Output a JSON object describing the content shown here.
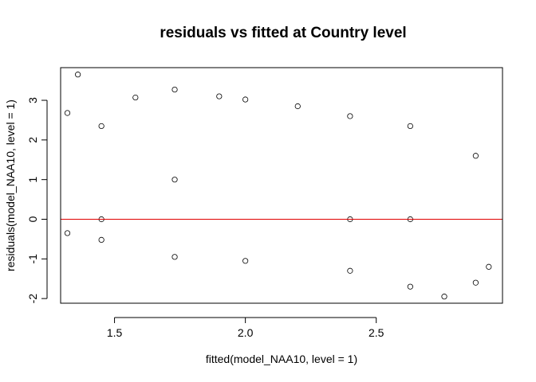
{
  "chart_data": {
    "type": "scatter",
    "title": "residuals vs fitted at Country level",
    "xlabel": "fitted(model_NAA10, level = 1)",
    "ylabel": "residuals(model_NAA10, level = 1)",
    "xlim": [
      1.2941,
      2.9824
    ],
    "ylim": [
      -2.1176,
      3.8235
    ],
    "x_ticks": [
      1.5,
      2.0,
      2.5
    ],
    "x_tick_labels": [
      "1.5",
      "2.0",
      "2.5"
    ],
    "y_ticks": [
      -2,
      -1,
      0,
      1,
      2,
      3
    ],
    "y_tick_labels": [
      "-2",
      "-1",
      "0",
      "1",
      "2",
      "3"
    ],
    "reference_line": {
      "y": 0,
      "color": "#e00000"
    },
    "point_style": "open-circle",
    "description_of_density": "very dense overplotted cloud; fitted values cluster at discrete levels around 1.32, 1.45, 1.73, 2.0, 2.4, 2.63 and 2.88, with residuals lying on descending diagonal bands",
    "series": [
      {
        "name": "residuals",
        "x": [
          1.36,
          1.32,
          1.32,
          1.45,
          1.45,
          1.45,
          1.58,
          1.73,
          1.73,
          1.73,
          1.9,
          2.0,
          2.0,
          2.2,
          2.4,
          2.4,
          2.4,
          2.63,
          2.63,
          2.63,
          2.76,
          2.88,
          2.88,
          2.93
        ],
        "y": [
          3.65,
          2.68,
          -0.35,
          2.35,
          0.0,
          -0.52,
          3.07,
          3.27,
          1.0,
          -0.95,
          3.1,
          3.02,
          -1.05,
          2.85,
          2.6,
          0.0,
          -1.3,
          2.35,
          0.0,
          -1.7,
          -1.95,
          1.6,
          -1.6,
          -1.2
        ]
      }
    ]
  }
}
